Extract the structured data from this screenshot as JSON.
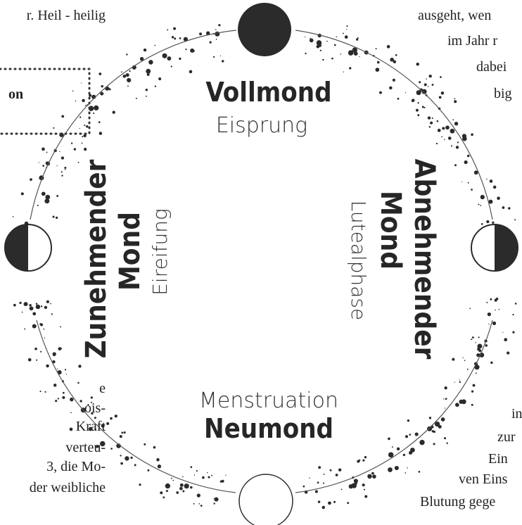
{
  "top_left_text": [
    "r. Heil - heilig"
  ],
  "boxed_text": "on",
  "top_right_text": [
    "ausgeht, wen",
    "im Jahr r",
    "dabei",
    "big"
  ],
  "bottom_left_text": [
    "e",
    "ois-",
    "Kraft",
    "verteu-",
    "3, die Mo-",
    "der weibliche"
  ],
  "bottom_right_text": [
    "in",
    "zur",
    "Ein",
    "ven Eins",
    "Blutung gege"
  ],
  "phases": [
    {
      "name": [
        "Vollmond"
      ],
      "label": "Eisprung"
    },
    {
      "name": [
        "Abnehmender",
        "Mond"
      ],
      "label": "Lutealphase"
    },
    {
      "name": [
        "Neumond"
      ],
      "label": "Menstruation"
    },
    {
      "name": [
        "Zunehmender",
        "Mond"
      ],
      "label": "Eireifung"
    }
  ]
}
